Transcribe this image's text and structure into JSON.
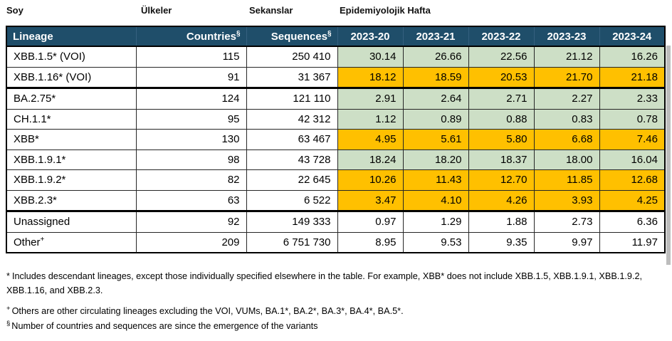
{
  "top_labels": {
    "soy": "Soy",
    "ulkeler": "Ülkeler",
    "sekanslar": "Sekanslar",
    "epi_hafta": "Epidemiyolojik Hafta"
  },
  "table": {
    "header": {
      "lineage": "Lineage",
      "countries": "Countries",
      "sequences": "Sequences",
      "sup": "§",
      "weeks": [
        "2023-20",
        "2023-21",
        "2023-22",
        "2023-23",
        "2023-24"
      ]
    },
    "rows": [
      {
        "lineage": "XBB.1.5* (VOI)",
        "lineage_sup": "",
        "countries": "115",
        "sequences": "250 410",
        "values": [
          "30.14",
          "26.66",
          "22.56",
          "21.12",
          "16.26"
        ],
        "highlight": "green",
        "group_end": false
      },
      {
        "lineage": "XBB.1.16* (VOI)",
        "lineage_sup": "",
        "countries": "91",
        "sequences": "31 367",
        "values": [
          "18.12",
          "18.59",
          "20.53",
          "21.70",
          "21.18"
        ],
        "highlight": "orange",
        "group_end": true
      },
      {
        "lineage": "BA.2.75*",
        "lineage_sup": "",
        "countries": "124",
        "sequences": "121 110",
        "values": [
          "2.91",
          "2.64",
          "2.71",
          "2.27",
          "2.33"
        ],
        "highlight": "green",
        "group_end": false
      },
      {
        "lineage": "CH.1.1*",
        "lineage_sup": "",
        "countries": "95",
        "sequences": "42 312",
        "values": [
          "1.12",
          "0.89",
          "0.88",
          "0.83",
          "0.78"
        ],
        "highlight": "green",
        "group_end": false
      },
      {
        "lineage": "XBB*",
        "lineage_sup": "",
        "countries": "130",
        "sequences": "63 467",
        "values": [
          "4.95",
          "5.61",
          "5.80",
          "6.68",
          "7.46"
        ],
        "highlight": "orange",
        "group_end": false
      },
      {
        "lineage": "XBB.1.9.1*",
        "lineage_sup": "",
        "countries": "98",
        "sequences": "43 728",
        "values": [
          "18.24",
          "18.20",
          "18.37",
          "18.00",
          "16.04"
        ],
        "highlight": "green",
        "group_end": false
      },
      {
        "lineage": "XBB.1.9.2*",
        "lineage_sup": "",
        "countries": "82",
        "sequences": "22 645",
        "values": [
          "10.26",
          "11.43",
          "12.70",
          "11.85",
          "12.68"
        ],
        "highlight": "orange",
        "group_end": false
      },
      {
        "lineage": "XBB.2.3*",
        "lineage_sup": "",
        "countries": "63",
        "sequences": "6 522",
        "values": [
          "3.47",
          "4.10",
          "4.26",
          "3.93",
          "4.25"
        ],
        "highlight": "orange",
        "group_end": true
      },
      {
        "lineage": "Unassigned",
        "lineage_sup": "",
        "countries": "92",
        "sequences": "149 333",
        "values": [
          "0.97",
          "1.29",
          "1.88",
          "2.73",
          "6.36"
        ],
        "highlight": "none",
        "group_end": false
      },
      {
        "lineage": "Other",
        "lineage_sup": "+",
        "countries": "209",
        "sequences": "6 751 730",
        "values": [
          "8.95",
          "9.53",
          "9.35",
          "9.97",
          "11.97"
        ],
        "highlight": "none",
        "group_end": false
      }
    ]
  },
  "footnotes": [
    {
      "marker": "*",
      "text": "Includes descendant lineages, except those individually specified elsewhere in the table. For example, XBB* does not include XBB.1.5, XBB.1.9.1, XBB.1.9.2, XBB.1.16, and XBB.2.3."
    },
    {
      "marker": "+",
      "text": "Others are other circulating lineages excluding the VOI, VUMs, BA.1*, BA.2*, BA.3*, BA.4*, BA.5*."
    },
    {
      "marker": "§",
      "text": "Number of countries and sequences are since the emergence of the variants"
    }
  ],
  "colors": {
    "header_bg": "#1f4e6a",
    "green": "#cddfc6",
    "orange": "#ffc000",
    "border": "#262626",
    "shadow": "#bdbdbd"
  }
}
